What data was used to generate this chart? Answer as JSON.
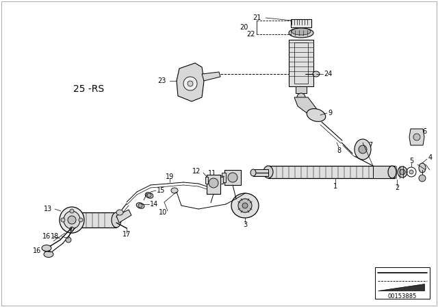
{
  "bg_color": "#ffffff",
  "line_color": "#000000",
  "diagram_id": "00153885",
  "lfs": 7,
  "border_color": "#d0d0d0"
}
